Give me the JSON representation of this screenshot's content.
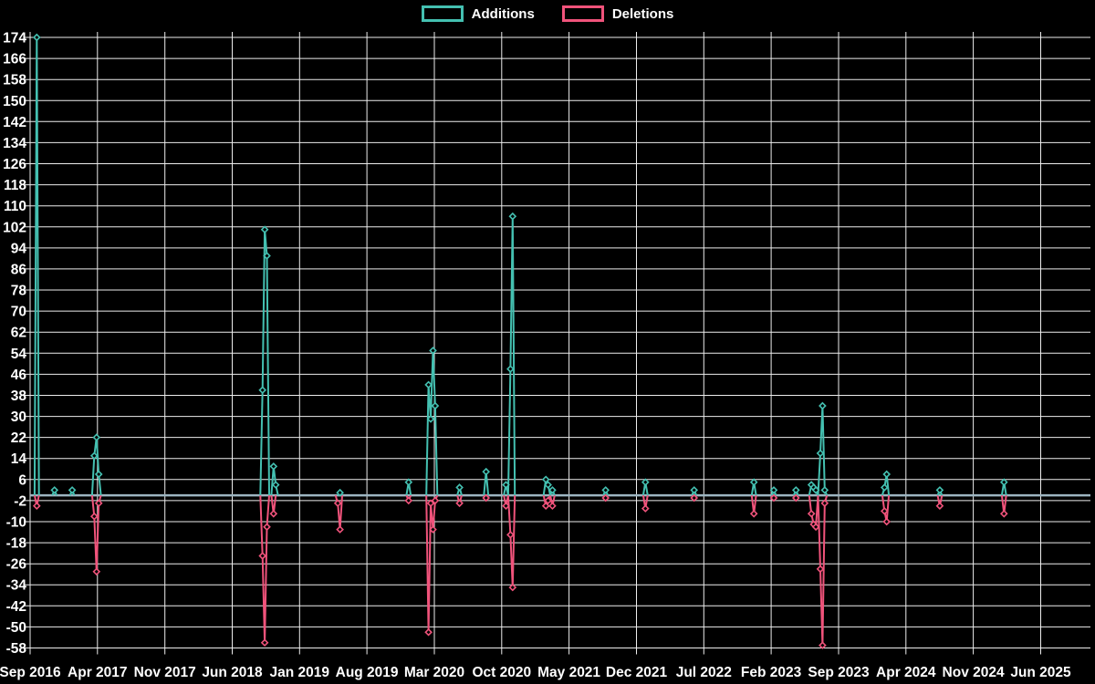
{
  "chart": {
    "background": "#000000",
    "grid_color": "#ededed",
    "zero_line_color": "#9db5c1",
    "text_color": "#ffffff"
  },
  "legend": {
    "items": [
      {
        "label": "Additions",
        "color": "#44c0b1"
      },
      {
        "label": "Deletions",
        "color": "#f0537b"
      }
    ]
  },
  "chart_data": {
    "type": "line",
    "title": "",
    "grid": true,
    "legend_position": "top-center",
    "x": {
      "tick_labels": [
        "Sep 2016",
        "Apr 2017",
        "Nov 2017",
        "Jun 2018",
        "Jan 2019",
        "Aug 2019",
        "Mar 2020",
        "Oct 2020",
        "May 2021",
        "Dec 2021",
        "Jul 2022",
        "Feb 2023",
        "Sep 2023",
        "Apr 2024",
        "Nov 2024",
        "Jun 2025"
      ],
      "months_per_tick": 7,
      "start": "Sep 2016",
      "end": "Jun 2025"
    },
    "y": {
      "min": -58,
      "max": 174,
      "tick_step": 8
    },
    "weeks_total": 480,
    "baseline_value": 0,
    "series": [
      {
        "name": "Additions",
        "color": "#44c0b1",
        "marker": "diamond",
        "nonzero_points": [
          [
            3,
            174
          ],
          [
            11,
            2
          ],
          [
            19,
            2
          ],
          [
            29,
            15
          ],
          [
            30,
            22
          ],
          [
            31,
            8
          ],
          [
            105,
            40
          ],
          [
            106,
            101
          ],
          [
            107,
            91
          ],
          [
            110,
            11
          ],
          [
            111,
            4
          ],
          [
            140,
            1
          ],
          [
            171,
            5
          ],
          [
            180,
            42
          ],
          [
            181,
            29
          ],
          [
            182,
            55
          ],
          [
            183,
            34
          ],
          [
            194,
            3
          ],
          [
            206,
            9
          ],
          [
            215,
            4
          ],
          [
            217,
            48
          ],
          [
            218,
            106
          ],
          [
            233,
            6
          ],
          [
            234,
            4
          ],
          [
            236,
            2
          ],
          [
            260,
            2
          ],
          [
            278,
            5
          ],
          [
            300,
            2
          ],
          [
            327,
            5
          ],
          [
            336,
            2
          ],
          [
            346,
            2
          ],
          [
            353,
            4
          ],
          [
            354,
            3
          ],
          [
            355,
            2
          ],
          [
            357,
            16
          ],
          [
            358,
            34
          ],
          [
            359,
            2
          ],
          [
            386,
            3
          ],
          [
            387,
            8
          ],
          [
            411,
            2
          ],
          [
            440,
            5
          ]
        ]
      },
      {
        "name": "Deletions",
        "color": "#f0537b",
        "marker": "diamond",
        "nonzero_points": [
          [
            3,
            -4
          ],
          [
            29,
            -8
          ],
          [
            30,
            -29
          ],
          [
            31,
            -3
          ],
          [
            105,
            -23
          ],
          [
            106,
            -56
          ],
          [
            107,
            -12
          ],
          [
            110,
            -7
          ],
          [
            139,
            -3
          ],
          [
            140,
            -13
          ],
          [
            171,
            -2
          ],
          [
            180,
            -52
          ],
          [
            181,
            -3
          ],
          [
            182,
            -13
          ],
          [
            183,
            -2
          ],
          [
            194,
            -3
          ],
          [
            206,
            -1
          ],
          [
            215,
            -4
          ],
          [
            217,
            -15
          ],
          [
            218,
            -35
          ],
          [
            233,
            -4
          ],
          [
            234,
            -2
          ],
          [
            236,
            -4
          ],
          [
            260,
            -1
          ],
          [
            278,
            -5
          ],
          [
            300,
            -1
          ],
          [
            327,
            -7
          ],
          [
            336,
            -1
          ],
          [
            346,
            -1
          ],
          [
            353,
            -7
          ],
          [
            354,
            -11
          ],
          [
            355,
            -12
          ],
          [
            357,
            -28
          ],
          [
            358,
            -57
          ],
          [
            359,
            -3
          ],
          [
            386,
            -6
          ],
          [
            387,
            -10
          ],
          [
            411,
            -4
          ],
          [
            440,
            -7
          ]
        ]
      }
    ]
  }
}
